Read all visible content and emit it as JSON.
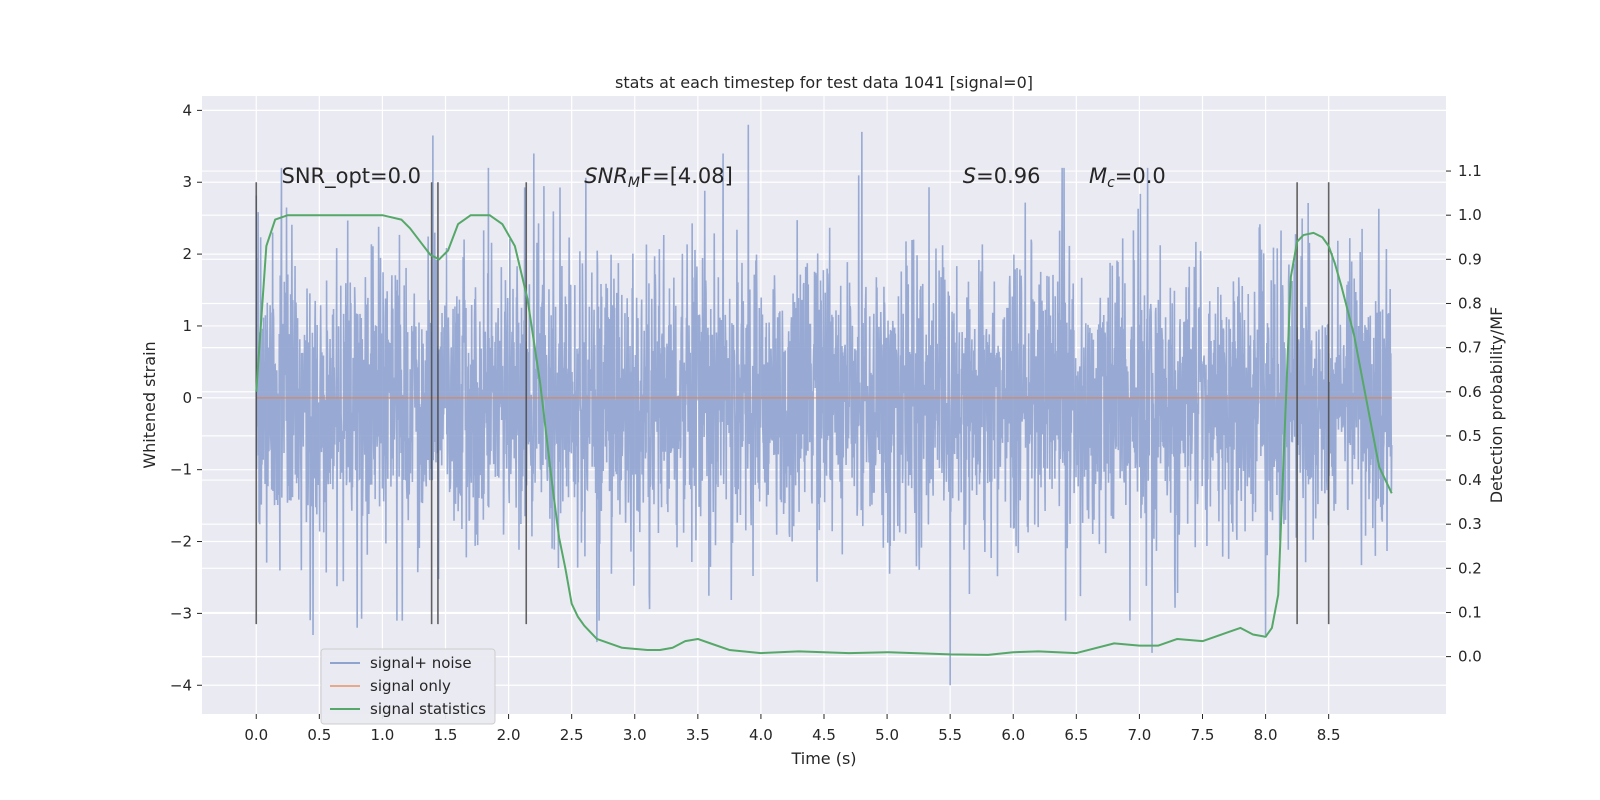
{
  "chart_data": {
    "type": "line",
    "title": "stats at each timestep for test data 1041 [signal=0]",
    "xlabel": "Time (s)",
    "ylabel": "Whitened strain",
    "y2label": "Detection probability/MF",
    "xlim": [
      -0.43,
      9.43
    ],
    "ylim": [
      -4.4,
      4.2
    ],
    "y2lim": [
      -0.13,
      1.27
    ],
    "xticks": [
      "0.0",
      "0.5",
      "1.0",
      "1.5",
      "2.0",
      "2.5",
      "3.0",
      "3.5",
      "4.0",
      "4.5",
      "5.0",
      "5.5",
      "6.0",
      "6.5",
      "7.0",
      "7.5",
      "8.0",
      "8.5"
    ],
    "yticks": [
      "4",
      "3",
      "2",
      "1",
      "0",
      "−1",
      "−2",
      "−3",
      "−4"
    ],
    "y2ticks": [
      "1.1",
      "1.0",
      "0.9",
      "0.8",
      "0.7",
      "0.6",
      "0.5",
      "0.4",
      "0.3",
      "0.2",
      "0.1",
      "0.0"
    ],
    "grid": true,
    "legend_position": "lower-left",
    "annotations": [
      {
        "text": "SNR_opt=0.0",
        "x": 0.2,
        "y": 3.1
      },
      {
        "text": "SNR",
        "sub": "M",
        "rest": "F=[4.08]",
        "x": 2.6,
        "y": 3.1
      },
      {
        "text": "S",
        "rest": "=0.96",
        "x": 5.6,
        "y": 3.1
      },
      {
        "text": "M",
        "sub": "c",
        "rest": "=0.0",
        "x": 6.6,
        "y": 3.1
      }
    ],
    "vertical_markers": [
      0.0,
      1.39,
      1.44,
      2.14,
      8.25,
      8.5
    ],
    "series": [
      {
        "name": "signal+ noise",
        "color": "#8fa3cf",
        "description": "whitened noise, approx. Gaussian, std ~1, range -4.0 to 3.8",
        "x_range": [
          0.0,
          9.0
        ],
        "spikes": [
          {
            "x": 1.4,
            "y": 3.65
          },
          {
            "x": 2.2,
            "y": 3.4
          },
          {
            "x": 3.7,
            "y": 3.4
          },
          {
            "x": 3.9,
            "y": 3.8
          },
          {
            "x": 4.8,
            "y": 3.7
          },
          {
            "x": 5.5,
            "y": -4.0
          },
          {
            "x": 7.1,
            "y": -3.55
          },
          {
            "x": 2.7,
            "y": -3.4
          },
          {
            "x": 0.45,
            "y": -3.3
          },
          {
            "x": 8.0,
            "y": -3.3
          },
          {
            "x": 0.8,
            "y": -3.2
          }
        ]
      },
      {
        "name": "signal only",
        "color": "#dd8452",
        "x": [
          0.0,
          9.0
        ],
        "y": [
          0.0,
          0.0
        ]
      },
      {
        "name": "signal statistics",
        "color": "#55a868",
        "axis": "right",
        "x": [
          0.0,
          0.08,
          0.15,
          0.25,
          0.5,
          1.0,
          1.15,
          1.22,
          1.3,
          1.38,
          1.45,
          1.52,
          1.6,
          1.7,
          1.85,
          1.95,
          2.05,
          2.15,
          2.25,
          2.3,
          2.35,
          2.4,
          2.45,
          2.5,
          2.55,
          2.6,
          2.7,
          2.9,
          3.1,
          3.2,
          3.3,
          3.4,
          3.5,
          3.6,
          3.75,
          4.0,
          4.3,
          4.7,
          5.0,
          5.5,
          5.8,
          6.0,
          6.2,
          6.5,
          6.8,
          7.0,
          7.15,
          7.3,
          7.5,
          7.7,
          7.8,
          7.9,
          8.0,
          8.05,
          8.1,
          8.15,
          8.2,
          8.25,
          8.3,
          8.38,
          8.45,
          8.5,
          8.55,
          8.6,
          8.7,
          8.8,
          8.9,
          9.0
        ],
        "y": [
          0.6,
          0.93,
          0.99,
          1.0,
          1.0,
          1.0,
          0.99,
          0.97,
          0.94,
          0.91,
          0.9,
          0.92,
          0.98,
          1.0,
          1.0,
          0.98,
          0.93,
          0.81,
          0.62,
          0.5,
          0.38,
          0.27,
          0.2,
          0.12,
          0.09,
          0.07,
          0.04,
          0.02,
          0.015,
          0.015,
          0.02,
          0.035,
          0.04,
          0.03,
          0.015,
          0.008,
          0.012,
          0.008,
          0.01,
          0.005,
          0.004,
          0.01,
          0.012,
          0.008,
          0.03,
          0.025,
          0.025,
          0.04,
          0.035,
          0.055,
          0.065,
          0.05,
          0.045,
          0.065,
          0.14,
          0.5,
          0.86,
          0.94,
          0.955,
          0.96,
          0.95,
          0.93,
          0.89,
          0.84,
          0.73,
          0.58,
          0.43,
          0.37
        ]
      }
    ]
  }
}
